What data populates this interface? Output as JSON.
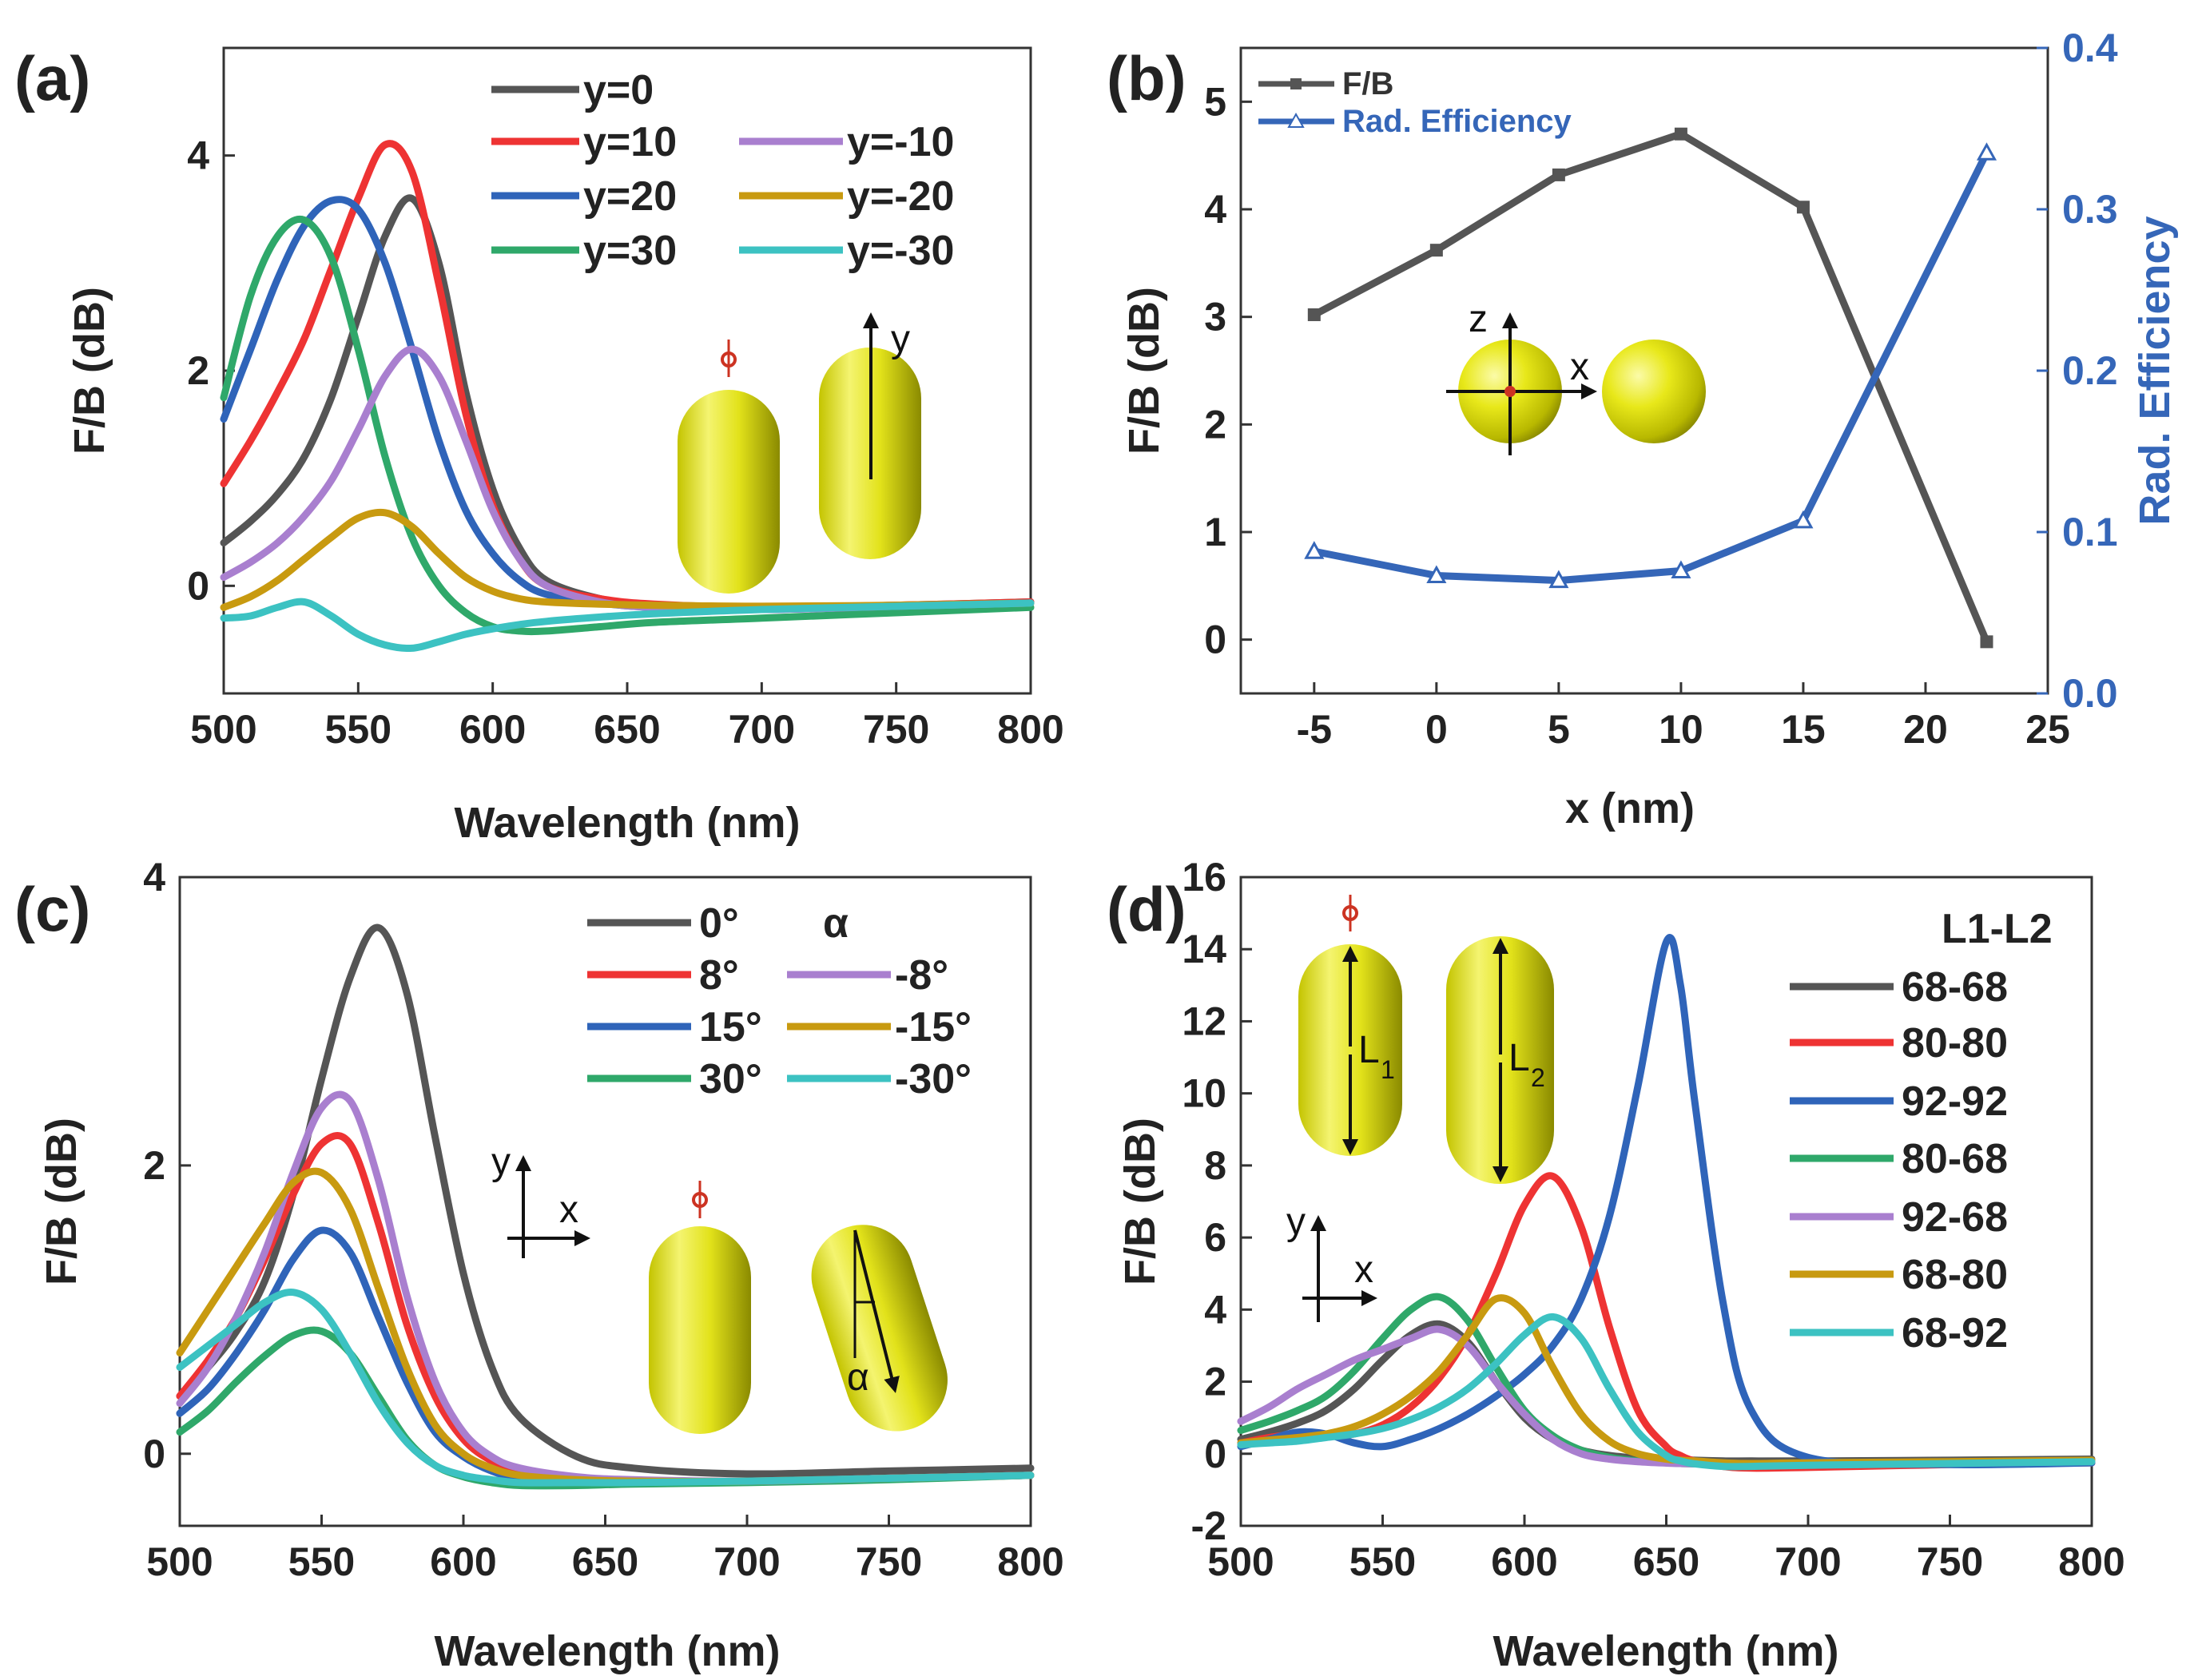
{
  "chart_data": [
    {
      "panel": "(a)",
      "type": "line",
      "xlabel": "Wavelength (nm)",
      "ylabel": "F/B (dB)",
      "xlim": [
        500,
        800
      ],
      "ylim": [
        -1,
        5
      ],
      "xticks": [
        500,
        550,
        600,
        650,
        700,
        750,
        800
      ],
      "yticks": [
        0,
        2,
        4
      ],
      "x": [
        500,
        510,
        520,
        530,
        540,
        550,
        560,
        570,
        580,
        590,
        600,
        610,
        620,
        640,
        660,
        700,
        750,
        800
      ],
      "series": [
        {
          "name": "y=0",
          "color": "#555555",
          "values": [
            0.4,
            0.6,
            0.85,
            1.2,
            1.75,
            2.5,
            3.25,
            3.6,
            3.0,
            1.8,
            0.9,
            0.35,
            0.05,
            -0.12,
            -0.18,
            -0.2,
            -0.18,
            -0.15
          ]
        },
        {
          "name": "y=10",
          "color": "#ee3333",
          "values": [
            0.95,
            1.35,
            1.8,
            2.3,
            2.95,
            3.6,
            4.1,
            3.85,
            2.8,
            1.6,
            0.75,
            0.25,
            0.0,
            -0.12,
            -0.17,
            -0.2,
            -0.18,
            -0.15
          ]
        },
        {
          "name": "y=20",
          "color": "#2f64b9",
          "values": [
            1.55,
            2.2,
            2.85,
            3.35,
            3.58,
            3.5,
            3.0,
            2.2,
            1.35,
            0.7,
            0.3,
            0.05,
            -0.08,
            -0.16,
            -0.2,
            -0.22,
            -0.19,
            -0.16
          ]
        },
        {
          "name": "y=30",
          "color": "#2fa86a",
          "values": [
            1.75,
            2.7,
            3.25,
            3.4,
            3.05,
            2.2,
            1.2,
            0.45,
            0.0,
            -0.25,
            -0.38,
            -0.42,
            -0.42,
            -0.38,
            -0.34,
            -0.3,
            -0.25,
            -0.2
          ]
        },
        {
          "name": "y=-10",
          "color": "#a97fcf",
          "values": [
            0.08,
            0.22,
            0.4,
            0.65,
            0.98,
            1.45,
            1.95,
            2.2,
            1.95,
            1.35,
            0.7,
            0.25,
            0.0,
            -0.15,
            -0.2,
            -0.22,
            -0.19,
            -0.16
          ]
        },
        {
          "name": "y=-20",
          "color": "#c89a10",
          "values": [
            -0.2,
            -0.1,
            0.05,
            0.25,
            0.45,
            0.63,
            0.68,
            0.55,
            0.3,
            0.08,
            -0.05,
            -0.12,
            -0.15,
            -0.17,
            -0.18,
            -0.19,
            -0.18,
            -0.16
          ]
        },
        {
          "name": "y=-30",
          "color": "#3cc2c2",
          "values": [
            -0.3,
            -0.28,
            -0.2,
            -0.15,
            -0.28,
            -0.45,
            -0.55,
            -0.58,
            -0.52,
            -0.45,
            -0.4,
            -0.36,
            -0.33,
            -0.29,
            -0.26,
            -0.22,
            -0.19,
            -0.16
          ]
        }
      ],
      "inset_label": "y"
    },
    {
      "panel": "(b)",
      "type": "line",
      "xlabel": "x (nm)",
      "ylabel": "F/B (dB)",
      "ylabel_right": "Rad. Efficiency",
      "xlim": [
        -8,
        25
      ],
      "ylim": [
        -0.5,
        5.5
      ],
      "ylim_right": [
        0.0,
        0.4
      ],
      "xticks": [
        -5,
        0,
        5,
        10,
        15,
        20,
        25
      ],
      "yticks": [
        0,
        1,
        2,
        3,
        4,
        5
      ],
      "yticks_right": [
        "0.0",
        "0.1",
        "0.2",
        "0.3",
        "0.4"
      ],
      "x": [
        -5,
        0,
        5,
        10,
        15,
        22.5
      ],
      "series": [
        {
          "name": "F/B",
          "color": "#555555",
          "axis": "left",
          "marker": "square",
          "values": [
            3.02,
            3.62,
            4.32,
            4.7,
            4.02,
            -0.02
          ]
        },
        {
          "name": "Rad. Efficiency",
          "color": "#3566b8",
          "axis": "right",
          "marker": "triangle",
          "values": [
            0.088,
            0.073,
            0.07,
            0.076,
            0.107,
            0.335
          ]
        }
      ],
      "inset_labels": [
        "z",
        "x"
      ]
    },
    {
      "panel": "(c)",
      "type": "line",
      "xlabel": "Wavelength (nm)",
      "ylabel": "F/B (dB)",
      "xlim": [
        500,
        800
      ],
      "ylim": [
        -0.5,
        4
      ],
      "xticks": [
        500,
        550,
        600,
        650,
        700,
        750,
        800
      ],
      "yticks": [
        0,
        2,
        4
      ],
      "legend_title": "α",
      "x": [
        500,
        510,
        520,
        530,
        540,
        550,
        560,
        570,
        580,
        590,
        600,
        610,
        620,
        640,
        660,
        700,
        750,
        800
      ],
      "series": [
        {
          "name": "0°",
          "color": "#555555",
          "values": [
            0.4,
            0.6,
            0.85,
            1.2,
            1.8,
            2.6,
            3.3,
            3.65,
            3.2,
            2.2,
            1.25,
            0.6,
            0.25,
            -0.02,
            -0.1,
            -0.14,
            -0.12,
            -0.1
          ]
        },
        {
          "name": "8°",
          "color": "#ee3333",
          "values": [
            0.4,
            0.65,
            0.95,
            1.35,
            1.8,
            2.15,
            2.15,
            1.6,
            0.9,
            0.4,
            0.1,
            -0.05,
            -0.12,
            -0.17,
            -0.19,
            -0.19,
            -0.17,
            -0.15
          ]
        },
        {
          "name": "15°",
          "color": "#2f64b9",
          "values": [
            0.28,
            0.45,
            0.7,
            1.0,
            1.35,
            1.55,
            1.4,
            0.95,
            0.5,
            0.15,
            -0.02,
            -0.12,
            -0.17,
            -0.2,
            -0.2,
            -0.19,
            -0.17,
            -0.15
          ]
        },
        {
          "name": "30°",
          "color": "#2fa86a",
          "values": [
            0.15,
            0.3,
            0.5,
            0.68,
            0.82,
            0.85,
            0.7,
            0.4,
            0.1,
            -0.08,
            -0.16,
            -0.2,
            -0.22,
            -0.22,
            -0.21,
            -0.2,
            -0.18,
            -0.15
          ]
        },
        {
          "name": "-8°",
          "color": "#a97fcf",
          "values": [
            0.35,
            0.6,
            0.95,
            1.4,
            1.95,
            2.4,
            2.45,
            1.9,
            1.1,
            0.5,
            0.15,
            -0.02,
            -0.1,
            -0.16,
            -0.18,
            -0.19,
            -0.17,
            -0.15
          ]
        },
        {
          "name": "-15°",
          "color": "#c89a10",
          "values": [
            0.7,
            1.0,
            1.3,
            1.6,
            1.88,
            1.95,
            1.7,
            1.15,
            0.6,
            0.2,
            0.0,
            -0.1,
            -0.15,
            -0.18,
            -0.19,
            -0.19,
            -0.17,
            -0.15
          ]
        },
        {
          "name": "-30°",
          "color": "#3cc2c2",
          "values": [
            0.6,
            0.75,
            0.9,
            1.05,
            1.12,
            1.0,
            0.7,
            0.35,
            0.08,
            -0.08,
            -0.15,
            -0.18,
            -0.2,
            -0.2,
            -0.2,
            -0.19,
            -0.17,
            -0.15
          ]
        }
      ],
      "inset_labels": [
        "y",
        "x",
        "α"
      ]
    },
    {
      "panel": "(d)",
      "type": "line",
      "xlabel": "Wavelength (nm)",
      "ylabel": "F/B (dB)",
      "xlim": [
        500,
        800
      ],
      "ylim": [
        -2,
        16
      ],
      "xticks": [
        500,
        550,
        600,
        650,
        700,
        750,
        800
      ],
      "yticks": [
        -2,
        0,
        2,
        4,
        6,
        8,
        10,
        12,
        14,
        16
      ],
      "legend_title": "L1-L2",
      "x": [
        500,
        510,
        520,
        530,
        540,
        550,
        560,
        570,
        580,
        590,
        600,
        610,
        620,
        630,
        640,
        650,
        655,
        660,
        670,
        680,
        700,
        750,
        800
      ],
      "series": [
        {
          "name": "68-68",
          "color": "#555555",
          "values": [
            0.4,
            0.6,
            0.85,
            1.2,
            1.8,
            2.6,
            3.3,
            3.6,
            3.1,
            2.0,
            1.0,
            0.4,
            0.1,
            -0.05,
            -0.12,
            -0.16,
            -0.17,
            -0.18,
            -0.2,
            -0.2,
            -0.2,
            -0.18,
            -0.15
          ]
        },
        {
          "name": "80-80",
          "color": "#ee3333",
          "values": [
            0.3,
            0.45,
            0.55,
            0.5,
            0.55,
            0.8,
            1.3,
            2.1,
            3.3,
            5.0,
            6.9,
            7.7,
            6.3,
            3.5,
            1.2,
            0.2,
            -0.05,
            -0.2,
            -0.35,
            -0.4,
            -0.38,
            -0.3,
            -0.25
          ]
        },
        {
          "name": "92-92",
          "color": "#2f64b9",
          "values": [
            0.2,
            0.4,
            0.6,
            0.55,
            0.3,
            0.2,
            0.4,
            0.7,
            1.1,
            1.6,
            2.2,
            3.0,
            4.3,
            6.6,
            10.2,
            14.2,
            13.0,
            9.8,
            4.2,
            1.2,
            -0.1,
            -0.3,
            -0.25
          ]
        },
        {
          "name": "80-68",
          "color": "#2fa86a",
          "values": [
            0.65,
            0.9,
            1.2,
            1.6,
            2.3,
            3.2,
            4.0,
            4.35,
            3.7,
            2.4,
            1.2,
            0.5,
            0.1,
            -0.1,
            -0.2,
            -0.25,
            -0.27,
            -0.28,
            -0.3,
            -0.3,
            -0.28,
            -0.24,
            -0.2
          ]
        },
        {
          "name": "92-68",
          "color": "#a97fcf",
          "values": [
            0.9,
            1.3,
            1.8,
            2.2,
            2.6,
            2.9,
            3.2,
            3.45,
            3.0,
            2.0,
            1.1,
            0.4,
            0.0,
            -0.15,
            -0.22,
            -0.26,
            -0.27,
            -0.28,
            -0.3,
            -0.3,
            -0.28,
            -0.24,
            -0.2
          ]
        },
        {
          "name": "68-80",
          "color": "#c89a10",
          "values": [
            0.3,
            0.38,
            0.45,
            0.55,
            0.75,
            1.1,
            1.6,
            2.3,
            3.3,
            4.3,
            3.9,
            2.4,
            1.1,
            0.35,
            0.0,
            -0.15,
            -0.18,
            -0.2,
            -0.25,
            -0.27,
            -0.25,
            -0.22,
            -0.18
          ]
        },
        {
          "name": "68-92",
          "color": "#3cc2c2",
          "values": [
            0.25,
            0.3,
            0.35,
            0.45,
            0.55,
            0.7,
            0.95,
            1.3,
            1.8,
            2.5,
            3.3,
            3.8,
            3.2,
            1.8,
            0.6,
            -0.05,
            -0.2,
            -0.28,
            -0.35,
            -0.35,
            -0.32,
            -0.27,
            -0.22
          ]
        }
      ],
      "inset_labels": [
        "L",
        "1",
        "L",
        "2",
        "y",
        "x"
      ]
    }
  ]
}
